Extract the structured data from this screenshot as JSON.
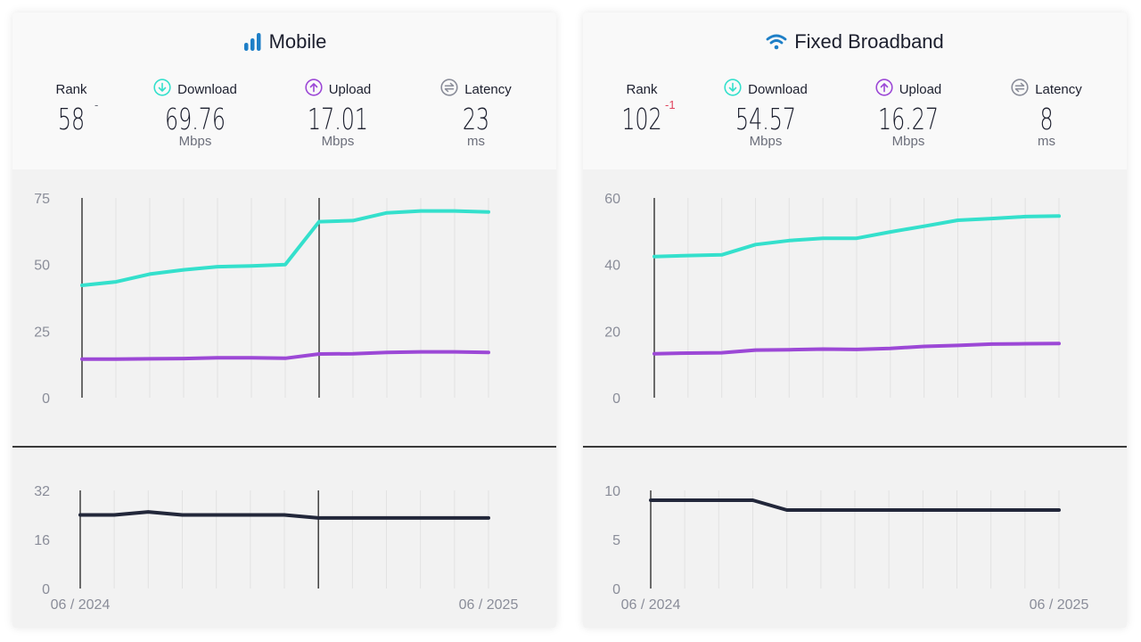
{
  "panels": [
    {
      "id": "mobile",
      "title": "Mobile",
      "title_icon": "signal-bars-icon",
      "rank": {
        "label": "Rank",
        "value": "58",
        "change": "-"
      },
      "download": {
        "label": "Download",
        "value": "69.76",
        "unit": "Mbps",
        "icon": "download-arrow-icon"
      },
      "upload": {
        "label": "Upload",
        "value": "17.01",
        "unit": "Mbps",
        "icon": "upload-arrow-icon"
      },
      "latency": {
        "label": "Latency",
        "value": "23",
        "unit": "ms",
        "icon": "latency-icon"
      }
    },
    {
      "id": "fixed",
      "title": "Fixed Broadband",
      "title_icon": "wifi-icon",
      "rank": {
        "label": "Rank",
        "value": "102",
        "change": "-1"
      },
      "download": {
        "label": "Download",
        "value": "54.57",
        "unit": "Mbps",
        "icon": "download-arrow-icon"
      },
      "upload": {
        "label": "Upload",
        "value": "16.27",
        "unit": "Mbps",
        "icon": "upload-arrow-icon"
      },
      "latency": {
        "label": "Latency",
        "value": "8",
        "unit": "ms",
        "icon": "latency-icon"
      }
    }
  ],
  "colors": {
    "download": "#34e0cc",
    "upload": "#9c48d6",
    "latency": "#22273a",
    "brand_blue": "#1e7fc7",
    "rank_change_negative": "#e0445d",
    "axis_text": "#8a8d99"
  },
  "chart_data": [
    {
      "type": "line",
      "title": "Mobile speeds",
      "x_labels": [
        "06 / 2024",
        "06 / 2025"
      ],
      "n_points": 13,
      "ylim": [
        0,
        75
      ],
      "yticks": [
        0,
        25,
        50,
        75
      ],
      "markers_at_index": [
        0,
        7
      ],
      "grid": "vertical",
      "series": [
        {
          "name": "Download",
          "values": [
            42.2,
            43.5,
            46.4,
            48.0,
            49.2,
            49.5,
            50.0,
            66.1,
            66.5,
            69.4,
            70.1,
            70.1,
            69.76
          ]
        },
        {
          "name": "Upload",
          "values": [
            14.5,
            14.5,
            14.6,
            14.7,
            15.0,
            15.0,
            14.8,
            16.4,
            16.5,
            17.0,
            17.2,
            17.2,
            17.01
          ]
        }
      ]
    },
    {
      "type": "line",
      "title": "Mobile latency",
      "x_labels": [
        "06 / 2024",
        "06 / 2025"
      ],
      "n_points": 13,
      "ylim": [
        0,
        32
      ],
      "yticks": [
        0,
        16,
        32
      ],
      "markers_at_index": [
        0,
        7
      ],
      "grid": "vertical",
      "series": [
        {
          "name": "Latency",
          "values": [
            24,
            24,
            25,
            24,
            24,
            24,
            24,
            23,
            23,
            23,
            23,
            23,
            23
          ]
        }
      ]
    },
    {
      "type": "line",
      "title": "Fixed Broadband speeds",
      "x_labels": [
        "06 / 2024",
        "06 / 2025"
      ],
      "n_points": 13,
      "ylim": [
        0,
        60
      ],
      "yticks": [
        0,
        20,
        40,
        60
      ],
      "markers_at_index": [
        0
      ],
      "grid": "vertical",
      "series": [
        {
          "name": "Download",
          "values": [
            42.4,
            42.7,
            42.9,
            46.0,
            47.2,
            47.9,
            47.9,
            49.8,
            51.5,
            53.3,
            53.8,
            54.4,
            54.57
          ]
        },
        {
          "name": "Upload",
          "values": [
            13.2,
            13.4,
            13.5,
            14.3,
            14.4,
            14.6,
            14.5,
            14.8,
            15.4,
            15.7,
            16.1,
            16.2,
            16.27
          ]
        }
      ]
    },
    {
      "type": "line",
      "title": "Fixed Broadband latency",
      "x_labels": [
        "06 / 2024",
        "06 / 2025"
      ],
      "n_points": 13,
      "ylim": [
        0,
        10
      ],
      "yticks": [
        0,
        5,
        10
      ],
      "markers_at_index": [
        0
      ],
      "grid": "vertical",
      "series": [
        {
          "name": "Latency",
          "values": [
            9,
            9,
            9,
            9,
            8,
            8,
            8,
            8,
            8,
            8,
            8,
            8,
            8
          ]
        }
      ]
    }
  ]
}
